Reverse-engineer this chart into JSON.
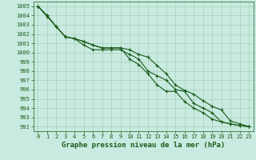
{
  "x": [
    0,
    1,
    2,
    3,
    4,
    5,
    6,
    7,
    8,
    9,
    10,
    11,
    12,
    13,
    14,
    15,
    16,
    17,
    18,
    19,
    20,
    21,
    22,
    23
  ],
  "line1": [
    1005.0,
    1004.0,
    1002.8,
    1001.7,
    1001.5,
    1001.2,
    1000.8,
    1000.5,
    1000.5,
    1000.5,
    1000.3,
    999.8,
    999.5,
    998.6,
    997.7,
    996.5,
    995.9,
    995.5,
    994.8,
    994.2,
    993.8,
    992.6,
    992.3,
    992.0
  ],
  "line2": [
    1005.0,
    1004.0,
    1002.8,
    1001.7,
    1001.5,
    1000.8,
    1000.3,
    1000.3,
    1000.3,
    1000.3,
    999.8,
    999.3,
    998.0,
    997.5,
    997.0,
    996.0,
    995.8,
    994.5,
    994.0,
    993.5,
    992.5,
    992.3,
    992.1,
    992.0
  ],
  "line3": [
    1005.0,
    1003.9,
    1002.8,
    1001.7,
    1001.5,
    1001.2,
    1000.8,
    1000.5,
    1000.5,
    1000.5,
    999.3,
    998.7,
    997.7,
    996.5,
    995.8,
    995.8,
    994.7,
    994.0,
    993.5,
    992.8,
    992.5,
    992.3,
    992.1,
    992.0
  ],
  "line_color": "#1a5c1a",
  "bg_color": "#c8eae0",
  "grid_color": "#a0c8b0",
  "xlabel": "Graphe pression niveau de la mer (hPa)",
  "ylim_min": 991.5,
  "ylim_max": 1005.5,
  "xlim_min": -0.5,
  "xlim_max": 23.5,
  "yticks": [
    992,
    993,
    994,
    995,
    996,
    997,
    998,
    999,
    1000,
    1001,
    1002,
    1003,
    1004,
    1005
  ],
  "xticks": [
    0,
    1,
    2,
    3,
    4,
    5,
    6,
    7,
    8,
    9,
    10,
    11,
    12,
    13,
    14,
    15,
    16,
    17,
    18,
    19,
    20,
    21,
    22,
    23
  ],
  "marker": "+",
  "markersize": 3.5,
  "linewidth": 0.8,
  "xlabel_fontsize": 6.5,
  "tick_fontsize": 5.0
}
